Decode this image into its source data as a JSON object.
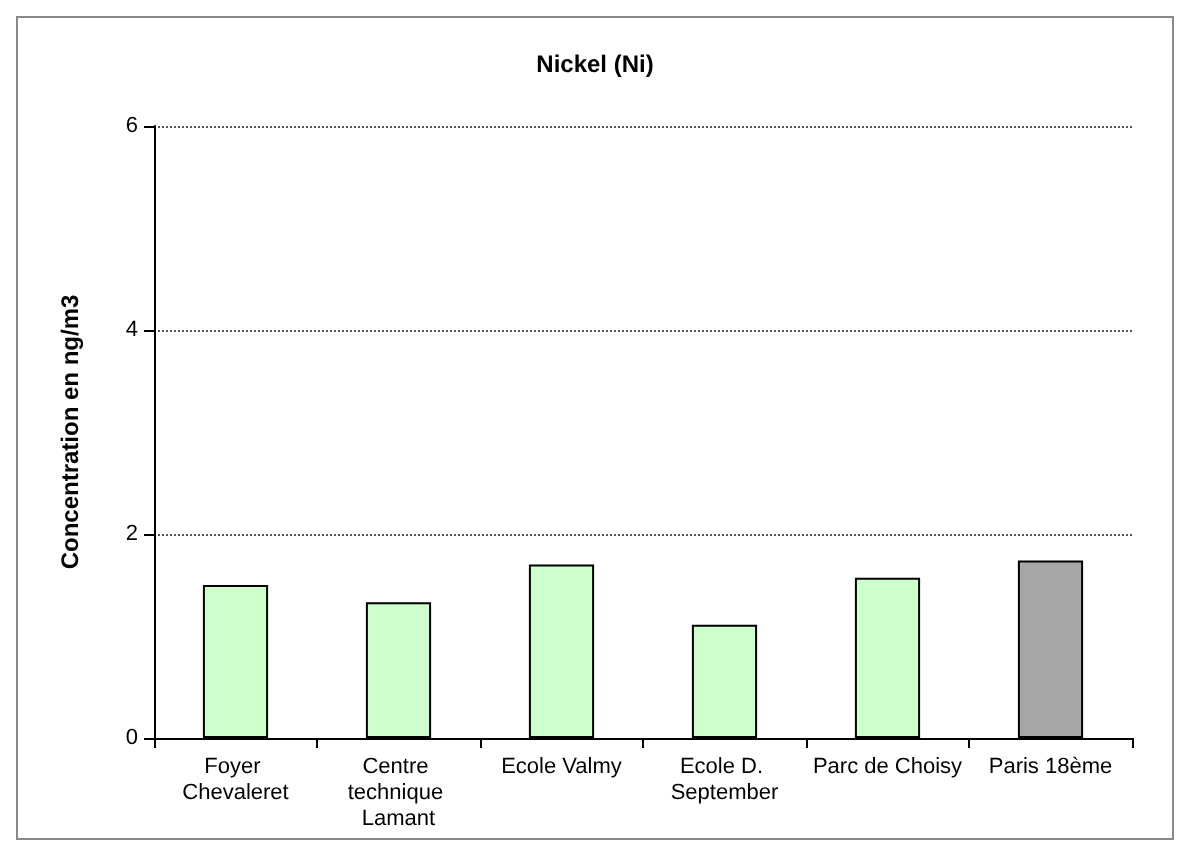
{
  "chart_data": {
    "type": "bar",
    "title": "Nickel (Ni)",
    "ylabel": "Concentration en ng/m3",
    "categories": [
      "Foyer Chevaleret",
      "Centre technique Lamant",
      "Ecole Valmy",
      "Ecole D. September",
      "Parc de Choisy",
      "Paris 18ème"
    ],
    "values": [
      1.5,
      1.33,
      1.7,
      1.11,
      1.57,
      1.74
    ],
    "colors": [
      "#ccffcc",
      "#ccffcc",
      "#ccffcc",
      "#ccffcc",
      "#ccffcc",
      "#a6a6a6"
    ],
    "ylim": [
      0,
      6
    ],
    "yticks": [
      0,
      2,
      4,
      6
    ],
    "grid": "y"
  }
}
